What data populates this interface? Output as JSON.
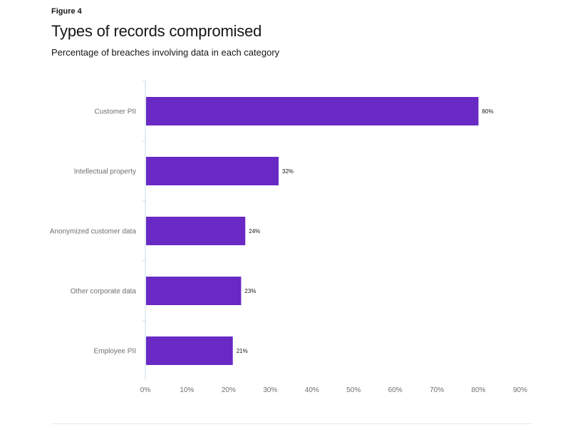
{
  "figure_label": "Figure 4",
  "colors": {
    "bar": "#6929c4",
    "axis": "#c6dde9",
    "tick": "#6f6f6f"
  },
  "chart_data": {
    "type": "bar",
    "orientation": "horizontal",
    "title": "Types of records compromised",
    "subtitle": "Percentage of breaches involving data in each category",
    "categories": [
      "Customer PII",
      "Intellectual property",
      "Anonymized customer data",
      "Other corporate data",
      "Employee PII"
    ],
    "values": [
      80,
      32,
      24,
      23,
      21
    ],
    "value_labels": [
      "80%",
      "32%",
      "24%",
      "23%",
      "21%"
    ],
    "xlim": [
      0,
      90
    ],
    "x_ticks": [
      "0%",
      "10%",
      "20%",
      "30%",
      "40%",
      "50%",
      "60%",
      "70%",
      "80%",
      "90%"
    ],
    "grid": false,
    "legend": "none"
  }
}
